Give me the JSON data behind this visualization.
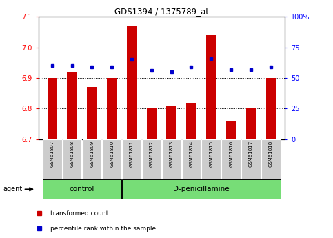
{
  "title": "GDS1394 / 1375789_at",
  "samples": [
    "GSM61807",
    "GSM61808",
    "GSM61809",
    "GSM61810",
    "GSM61811",
    "GSM61812",
    "GSM61813",
    "GSM61814",
    "GSM61815",
    "GSM61816",
    "GSM61817",
    "GSM61818"
  ],
  "red_values": [
    6.9,
    6.92,
    6.87,
    6.9,
    7.07,
    6.8,
    6.81,
    6.82,
    7.04,
    6.76,
    6.8,
    6.9
  ],
  "blue_values_pct": [
    60,
    60,
    59,
    59,
    65,
    56,
    55,
    59,
    66,
    57,
    57,
    59
  ],
  "ylim_left": [
    6.7,
    7.1
  ],
  "ylim_right": [
    0,
    100
  ],
  "yticks_left": [
    6.7,
    6.8,
    6.9,
    7.0,
    7.1
  ],
  "yticks_right": [
    0,
    25,
    50,
    75,
    100
  ],
  "ytick_labels_right": [
    "0",
    "25",
    "50",
    "75",
    "100%"
  ],
  "n_control": 4,
  "n_treatment": 8,
  "control_label": "control",
  "treatment_label": "D-penicillamine",
  "agent_label": "agent",
  "legend_red": "transformed count",
  "legend_blue": "percentile rank within the sample",
  "bar_color": "#cc0000",
  "dot_color": "#0000cc",
  "bar_width": 0.5,
  "grid_color": "#000000",
  "bg_xtick": "#cccccc",
  "bg_green": "#77dd77"
}
